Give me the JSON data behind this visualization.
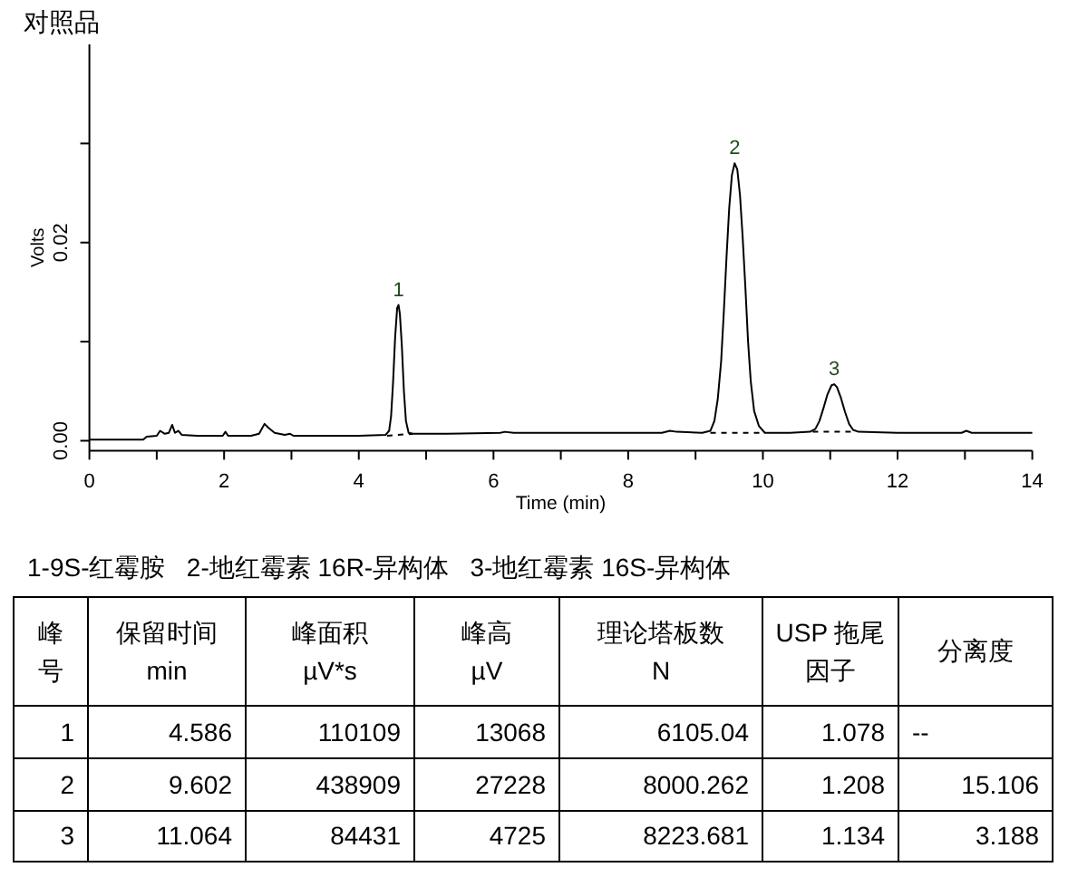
{
  "chart_data": [
    {
      "type": "line",
      "title": "对照品",
      "xlabel": "Time (min)",
      "ylabel": "Volts",
      "xlim": [
        0,
        14
      ],
      "xticks": [
        0,
        {
          "value": 1,
          "label": null
        },
        2,
        {
          "value": 3,
          "label": null
        },
        4,
        {
          "value": 5,
          "label": null
        },
        6,
        {
          "value": 7,
          "label": null
        },
        8,
        {
          "value": 9,
          "label": null
        },
        10,
        {
          "value": 11,
          "label": null
        },
        12,
        {
          "value": 13,
          "label": null
        },
        14
      ],
      "ylim": [
        -0.001,
        0.04
      ],
      "yticks": [
        {
          "value": 0,
          "label": "0.00"
        },
        {
          "value": 0.01,
          "label": null
        },
        {
          "value": 0.02,
          "label": "0.02"
        },
        {
          "value": 0.03,
          "label": null
        }
      ],
      "series": [
        {
          "color": "#000000",
          "x": [
            0,
            0.8,
            0.85,
            1.0,
            1.05,
            1.12,
            1.18,
            1.23,
            1.27,
            1.32,
            1.37,
            1.6,
            1.8,
            1.98,
            2.02,
            2.06,
            2.4,
            2.52,
            2.6,
            2.66,
            2.75,
            2.9,
            2.98,
            3.03,
            3.5,
            4.0,
            4.4,
            4.45,
            4.48,
            4.51,
            4.54,
            4.57,
            4.59,
            4.61,
            4.64,
            4.67,
            4.7,
            4.74,
            4.8,
            5.3,
            6.1,
            6.17,
            6.3,
            7.5,
            8.5,
            8.62,
            8.72,
            9.1,
            9.22,
            9.28,
            9.33,
            9.38,
            9.42,
            9.46,
            9.5,
            9.54,
            9.58,
            9.62,
            9.66,
            9.7,
            9.74,
            9.78,
            9.82,
            9.87,
            9.94,
            10.03,
            10.4,
            10.7,
            10.78,
            10.84,
            10.9,
            10.96,
            11.02,
            11.06,
            11.1,
            11.16,
            11.22,
            11.28,
            11.34,
            11.42,
            12.0,
            12.95,
            13.02,
            13.1,
            14.0
          ],
          "values": [
            0.0001,
            0.0001,
            0.0004,
            0.0005,
            0.001,
            0.0007,
            0.0008,
            0.0016,
            0.0008,
            0.001,
            0.0006,
            0.0005,
            0.0005,
            0.0005,
            0.0009,
            0.0005,
            0.0005,
            0.0007,
            0.0017,
            0.0013,
            0.0008,
            0.0006,
            0.0007,
            0.0005,
            0.0005,
            0.0005,
            0.0006,
            0.001,
            0.0025,
            0.006,
            0.0105,
            0.0134,
            0.0137,
            0.0128,
            0.0095,
            0.005,
            0.002,
            0.0008,
            0.0007,
            0.0007,
            0.0008,
            0.0009,
            0.0008,
            0.0008,
            0.0008,
            0.001,
            0.0009,
            0.0008,
            0.001,
            0.002,
            0.0042,
            0.008,
            0.013,
            0.0185,
            0.0235,
            0.0268,
            0.028,
            0.0274,
            0.0248,
            0.0205,
            0.0155,
            0.01,
            0.006,
            0.003,
            0.0015,
            0.0008,
            0.0008,
            0.0009,
            0.0012,
            0.002,
            0.0033,
            0.0047,
            0.0056,
            0.0057,
            0.0054,
            0.0043,
            0.0029,
            0.0017,
            0.0011,
            0.0009,
            0.0008,
            0.0008,
            0.001,
            0.0008,
            0.0008
          ]
        },
        {
          "color": "#000000",
          "line_style": "dashed",
          "x": [
            4.42,
            4.8
          ],
          "values": [
            0.0005,
            0.0007
          ]
        },
        {
          "color": "#000000",
          "line_style": "dashed",
          "x": [
            9.22,
            10.03
          ],
          "values": [
            0.0008,
            0.0008
          ]
        },
        {
          "color": "#000000",
          "line_style": "dashed",
          "x": [
            10.74,
            11.37
          ],
          "values": [
            0.0009,
            0.0009
          ]
        }
      ],
      "annotations": [
        {
          "text": "1",
          "x": 4.59,
          "y": 0.0137
        },
        {
          "text": "2",
          "x": 9.58,
          "y": 0.028
        },
        {
          "text": "3",
          "x": 11.06,
          "y": 0.0057
        }
      ]
    },
    {
      "type": "other",
      "title": "1-9S-红霉胺   2-地红霉素 16R-异构体   3-地红霉素 16S-异构体",
      "annotations": [
        "峰号",
        "保留时间\nmin",
        "峰面积\nµV*s",
        "峰高\nµV",
        "理论塔板数\nN",
        "USP 拖尾因子",
        "分离度",
        "1",
        "4.586",
        "110109",
        "13068",
        "6105.04",
        "1.078",
        "--",
        "2",
        "9.602",
        "438909",
        "27228",
        "8000.262",
        "1.208",
        "15.106",
        "3",
        "11.064",
        "84431",
        "4725",
        "8223.681",
        "1.134",
        "3.188"
      ]
    }
  ]
}
